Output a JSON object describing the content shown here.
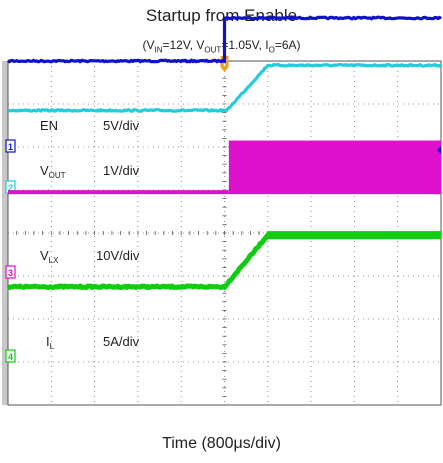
{
  "chart_data": {
    "type": "line",
    "title": "Startup from Enable",
    "subtitle": {
      "prefix": "(V",
      "vin_sub": "IN",
      "vin_val": "=12V,  V",
      "vout_sub": "OUT",
      "vout_val": "=1.05V, I",
      "io_sub": "O",
      "io_val": "=6A)"
    },
    "xlabel": "Time (800μs/div)",
    "x_unit": "div",
    "xlim": [
      0,
      10
    ],
    "grid": true,
    "trigger_marker": "T",
    "trigger_x": 5,
    "channels": [
      {
        "id": "EN",
        "marker": "1",
        "scale_text": "5V/div",
        "color": "#1111cc",
        "label": "EN",
        "label_sub": "",
        "points": [
          [
            0,
            0
          ],
          [
            5.0,
            0
          ],
          [
            5.0,
            5.0
          ],
          [
            10,
            5.0
          ]
        ],
        "baseline_div": 4.0,
        "volts_per_div": 5
      },
      {
        "id": "VOUT",
        "marker": "2",
        "scale_text": "1V/div",
        "color": "#22ccdd",
        "label": "V",
        "label_sub": "OUT",
        "points": [
          [
            0,
            0
          ],
          [
            5.05,
            0
          ],
          [
            6.0,
            1.05
          ],
          [
            10,
            1.05
          ]
        ],
        "baseline_div": 2.85,
        "volts_per_div": 1
      },
      {
        "id": "VLX",
        "marker": "3",
        "scale_text": "10V/div",
        "color": "#dd11cc",
        "label": "V",
        "label_sub": "LX",
        "points": [
          [
            0,
            0
          ],
          [
            5.1,
            0
          ],
          [
            5.1,
            12
          ],
          [
            10,
            12
          ]
        ],
        "switching": true,
        "baseline_div": 0.95,
        "volts_per_div": 10
      },
      {
        "id": "IL",
        "marker": "4",
        "scale_text": "5A/div",
        "color": "#11cc11",
        "label": "I",
        "label_sub": "L",
        "points": [
          [
            0,
            0
          ],
          [
            5.0,
            0
          ],
          [
            6.0,
            6.0
          ],
          [
            10,
            6.0
          ]
        ],
        "ripple": true,
        "baseline_div": -1.25,
        "volts_per_div": 5
      }
    ]
  }
}
